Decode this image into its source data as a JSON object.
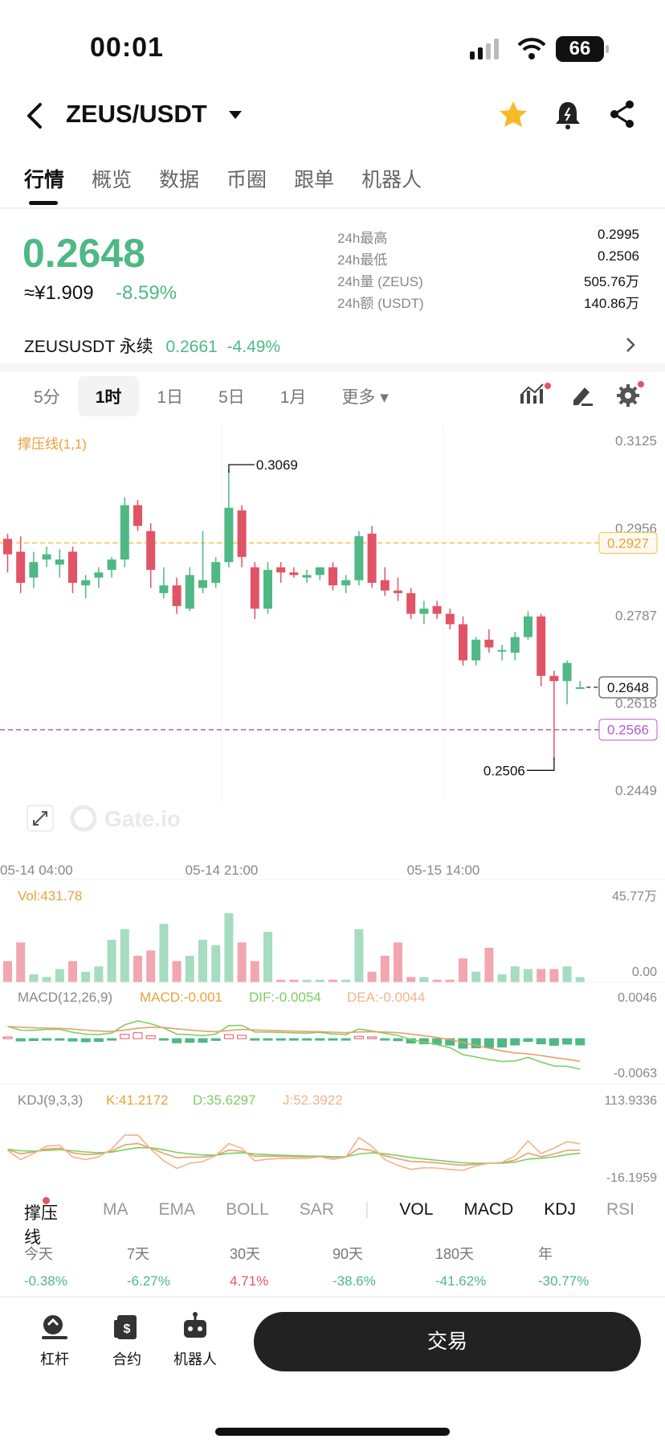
{
  "status": {
    "time": "00:01",
    "battery": "66"
  },
  "header": {
    "pair": "ZEUS/USDT"
  },
  "tabs": [
    "行情",
    "概览",
    "数据",
    "币圈",
    "跟单",
    "机器人"
  ],
  "ticker": {
    "price": "0.2648",
    "cny": "≈¥1.909",
    "change": "-8.59%",
    "stats": [
      {
        "k": "24h最高",
        "v": "0.2995"
      },
      {
        "k": "24h最低",
        "v": "0.2506"
      },
      {
        "k": "24h量 (ZEUS)",
        "v": "505.76万"
      },
      {
        "k": "24h额 (USDT)",
        "v": "140.86万"
      }
    ]
  },
  "perpetual": {
    "name": "ZEUSUSDT 永续",
    "price": "0.2661",
    "change": "-4.49%"
  },
  "intervals": [
    "5分",
    "1时",
    "1日",
    "5日",
    "1月",
    "更多"
  ],
  "chart": {
    "indicator_label": "撑压线(1,1)",
    "price_axis": [
      "0.3125",
      "0.2956",
      "0.2787",
      "0.2618",
      "0.2449"
    ],
    "resistance_label": "0.2927",
    "support_label": "0.2566",
    "current_label": "0.2648",
    "high_annot": "0.3069",
    "low_annot": "0.2506",
    "watermark": "Gate.io",
    "time_axis": [
      "05-14 04:00",
      "05-14 21:00",
      "05-15 14:00"
    ],
    "vol_label": "Vol:431.78",
    "vol_axis": [
      "45.77万",
      "0.00"
    ],
    "macd_label": "MACD(12,26,9)",
    "macd_val": "MACD:-0.001",
    "dif_val": "DIF:-0.0054",
    "dea_val": "DEA:-0.0044",
    "macd_axis": [
      "0.0046",
      "-0.0063"
    ],
    "kdj_label": "KDJ(9,3,3)",
    "k_val": "K:41.2172",
    "d_val": "D:35.6297",
    "j_val": "J:52.3922",
    "kdj_axis": [
      "113.9336",
      "-16.1959"
    ]
  },
  "indicator_tabs": [
    "撑压线",
    "MA",
    "EMA",
    "BOLL",
    "SAR",
    "VOL",
    "MACD",
    "KDJ",
    "RSI"
  ],
  "periods": [
    {
      "label": "今天",
      "value": "-0.38%"
    },
    {
      "label": "7天",
      "value": "-6.27%"
    },
    {
      "label": "30天",
      "value": "4.71%"
    },
    {
      "label": "90天",
      "value": "-38.6%"
    },
    {
      "label": "180天",
      "value": "-41.62%"
    },
    {
      "label": "年",
      "value": "-30.77%"
    }
  ],
  "bottom": {
    "leverage": "杠杆",
    "contract": "合约",
    "robot": "机器人",
    "trade": "交易"
  },
  "colors": {
    "up": "#4fb884",
    "down": "#e05465",
    "resistance": "#f0c24a",
    "support": "#b45bd0"
  },
  "chart_data": {
    "type": "candlestick",
    "ohlc": [
      [
        0.2935,
        0.2945,
        0.287,
        0.2905
      ],
      [
        0.291,
        0.294,
        0.283,
        0.285
      ],
      [
        0.286,
        0.291,
        0.284,
        0.289
      ],
      [
        0.2895,
        0.292,
        0.288,
        0.2905
      ],
      [
        0.2885,
        0.2915,
        0.286,
        0.2895
      ],
      [
        0.291,
        0.292,
        0.283,
        0.285
      ],
      [
        0.2845,
        0.2865,
        0.282,
        0.2855
      ],
      [
        0.286,
        0.288,
        0.284,
        0.287
      ],
      [
        0.2875,
        0.29,
        0.286,
        0.2895
      ],
      [
        0.2895,
        0.3015,
        0.288,
        0.3
      ],
      [
        0.3,
        0.301,
        0.295,
        0.296
      ],
      [
        0.295,
        0.2965,
        0.284,
        0.2875
      ],
      [
        0.283,
        0.288,
        0.282,
        0.2845
      ],
      [
        0.2845,
        0.286,
        0.279,
        0.2805
      ],
      [
        0.28,
        0.288,
        0.2795,
        0.2865
      ],
      [
        0.284,
        0.295,
        0.283,
        0.2855
      ],
      [
        0.285,
        0.29,
        0.284,
        0.289
      ],
      [
        0.289,
        0.3069,
        0.288,
        0.2995
      ],
      [
        0.299,
        0.3,
        0.288,
        0.29
      ],
      [
        0.288,
        0.289,
        0.278,
        0.28
      ],
      [
        0.28,
        0.289,
        0.279,
        0.2875
      ],
      [
        0.288,
        0.289,
        0.285,
        0.287
      ],
      [
        0.287,
        0.288,
        0.286,
        0.2865
      ],
      [
        0.286,
        0.2875,
        0.285,
        0.2865
      ],
      [
        0.2865,
        0.288,
        0.2855,
        0.288
      ],
      [
        0.288,
        0.289,
        0.2835,
        0.2845
      ],
      [
        0.2845,
        0.2865,
        0.283,
        0.2855
      ],
      [
        0.2855,
        0.295,
        0.2845,
        0.294
      ],
      [
        0.2945,
        0.296,
        0.284,
        0.285
      ],
      [
        0.2855,
        0.288,
        0.2825,
        0.2835
      ],
      [
        0.2835,
        0.286,
        0.2815,
        0.283
      ],
      [
        0.283,
        0.284,
        0.278,
        0.279
      ],
      [
        0.279,
        0.2815,
        0.277,
        0.28
      ],
      [
        0.2805,
        0.2815,
        0.278,
        0.279
      ],
      [
        0.279,
        0.28,
        0.276,
        0.277
      ],
      [
        0.277,
        0.2785,
        0.269,
        0.27
      ],
      [
        0.27,
        0.2745,
        0.269,
        0.274
      ],
      [
        0.274,
        0.276,
        0.2715,
        0.2725
      ],
      [
        0.272,
        0.273,
        0.27,
        0.272
      ],
      [
        0.2715,
        0.2755,
        0.27,
        0.2745
      ],
      [
        0.2745,
        0.2795,
        0.274,
        0.2785
      ],
      [
        0.2785,
        0.279,
        0.265,
        0.267
      ],
      [
        0.267,
        0.268,
        0.2506,
        0.266
      ],
      [
        0.266,
        0.27,
        0.2615,
        0.2695
      ],
      [
        0.2648,
        0.266,
        0.2645,
        0.2648
      ]
    ],
    "volume": [
      8,
      15,
      3,
      2,
      5,
      8,
      4,
      6,
      16,
      20,
      10,
      12,
      22,
      8,
      10,
      16,
      14,
      26,
      15,
      8,
      19,
      1,
      1,
      1,
      1,
      1,
      1,
      20,
      4,
      10,
      15,
      2,
      2,
      1,
      1,
      9,
      4,
      13,
      3,
      6,
      5,
      5,
      5,
      6,
      2
    ],
    "levels": {
      "resistance": 0.2927,
      "support": 0.2566,
      "current": 0.2648
    },
    "ylim": [
      0.2449,
      0.3125
    ],
    "x_ticks": [
      "05-14 04:00",
      "05-14 21:00",
      "05-15 14:00"
    ]
  }
}
